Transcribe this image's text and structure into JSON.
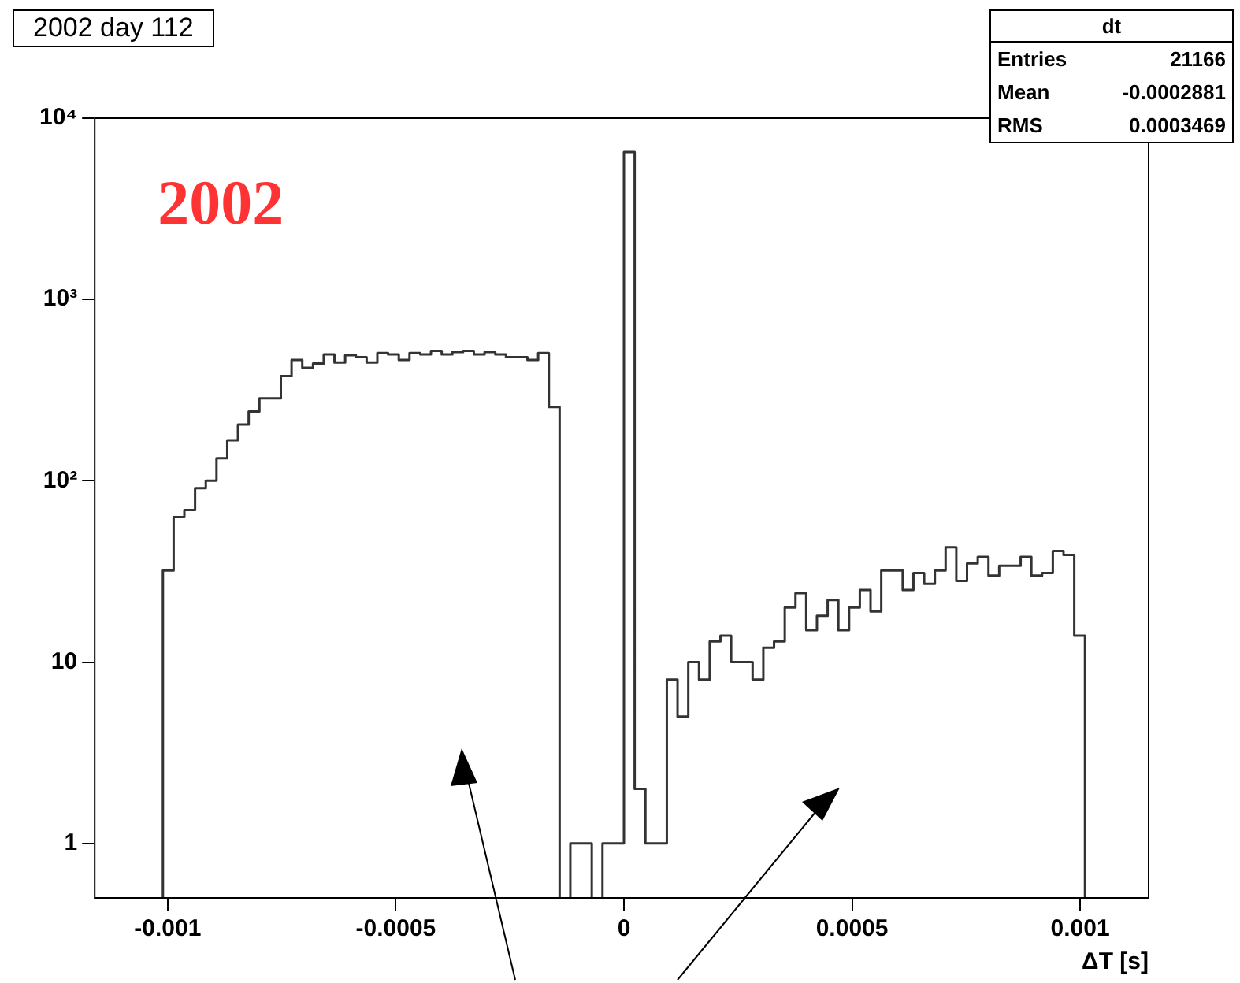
{
  "chart_data": {
    "type": "histogram",
    "title": "2002 day 112",
    "xlabel": "ΔT [s]",
    "annotations": [
      "2002",
      "dt",
      "Entries 21166",
      "Mean -0.0002881",
      "RMS 0.0003469"
    ],
    "bins": [
      -0.0010105,
      -0.000987,
      -0.0009635,
      -0.00094,
      -0.0009165,
      -0.000893,
      -0.0008695,
      -0.000846,
      -0.0008225,
      -0.000799,
      -0.0007755,
      -0.000752,
      -0.0007285,
      -0.000705,
      -0.0006815,
      -0.000658,
      -0.0006345,
      -0.000611,
      -0.0005875,
      -0.000564,
      -0.0005405,
      -0.000517,
      -0.0004935,
      -0.00047,
      -0.0004465,
      -0.000423,
      -0.0003995,
      -0.000376,
      -0.0003525,
      -0.000329,
      -0.0003055,
      -0.000282,
      -0.0002585,
      -0.000235,
      -0.0002115,
      -0.000188,
      -0.0001645,
      -0.000141,
      -0.0001175,
      -9.4e-05,
      -7.05e-05,
      -4.7e-05,
      -2.35e-05,
      0,
      2.35e-05,
      4.7e-05,
      7.05e-05,
      9.4e-05,
      0.0001175,
      0.000141,
      0.0001645,
      0.000188,
      0.0002115,
      0.000235,
      0.0002585,
      0.000282,
      0.0003055,
      0.000329,
      0.0003525,
      0.000376,
      0.0003995,
      0.000423,
      0.0004465,
      0.00047,
      0.0004935,
      0.000517,
      0.0005405,
      0.000564,
      0.0005875,
      0.000611,
      0.0006345,
      0.000658,
      0.0006815,
      0.000705,
      0.0007285,
      0.000752,
      0.0007755,
      0.000799,
      0.0008225,
      0.000846,
      0.0008695,
      0.000893,
      0.0009165,
      0.00094,
      0.0009635,
      0.000987,
      0.0010105
    ],
    "values": [
      32,
      63,
      69,
      91,
      100,
      133,
      167,
      204,
      241,
      285,
      285,
      378,
      464,
      420,
      443,
      497,
      449,
      493,
      480,
      449,
      506,
      497,
      464,
      506,
      497,
      520,
      497,
      513,
      520,
      497,
      513,
      497,
      480,
      480,
      464,
      506,
      255,
      null,
      1,
      1,
      null,
      1,
      1,
      6500,
      2,
      1,
      1,
      8,
      5,
      10,
      8,
      13,
      14,
      10,
      10,
      8,
      12,
      13,
      20,
      24,
      15,
      18,
      22,
      15,
      20,
      25,
      19,
      32,
      32,
      25,
      31,
      27,
      32,
      43,
      28,
      35,
      38,
      30,
      34,
      34,
      38,
      30,
      31,
      41,
      39,
      14
    ],
    "color": "#333333",
    "log": "y",
    "grid": false,
    "legend": false,
    "xlim": [
      -0.00116,
      0.00115
    ],
    "xticks": [
      -0.001,
      -0.0005,
      0,
      0.0005,
      0.001
    ],
    "ylim": [
      0.5,
      10000
    ],
    "yticks": [
      1,
      10,
      {
        "value": 100,
        "label": "10²"
      },
      {
        "value": 1000,
        "label": "10³"
      },
      {
        "value": 10000,
        "label": "10⁴"
      }
    ]
  }
}
